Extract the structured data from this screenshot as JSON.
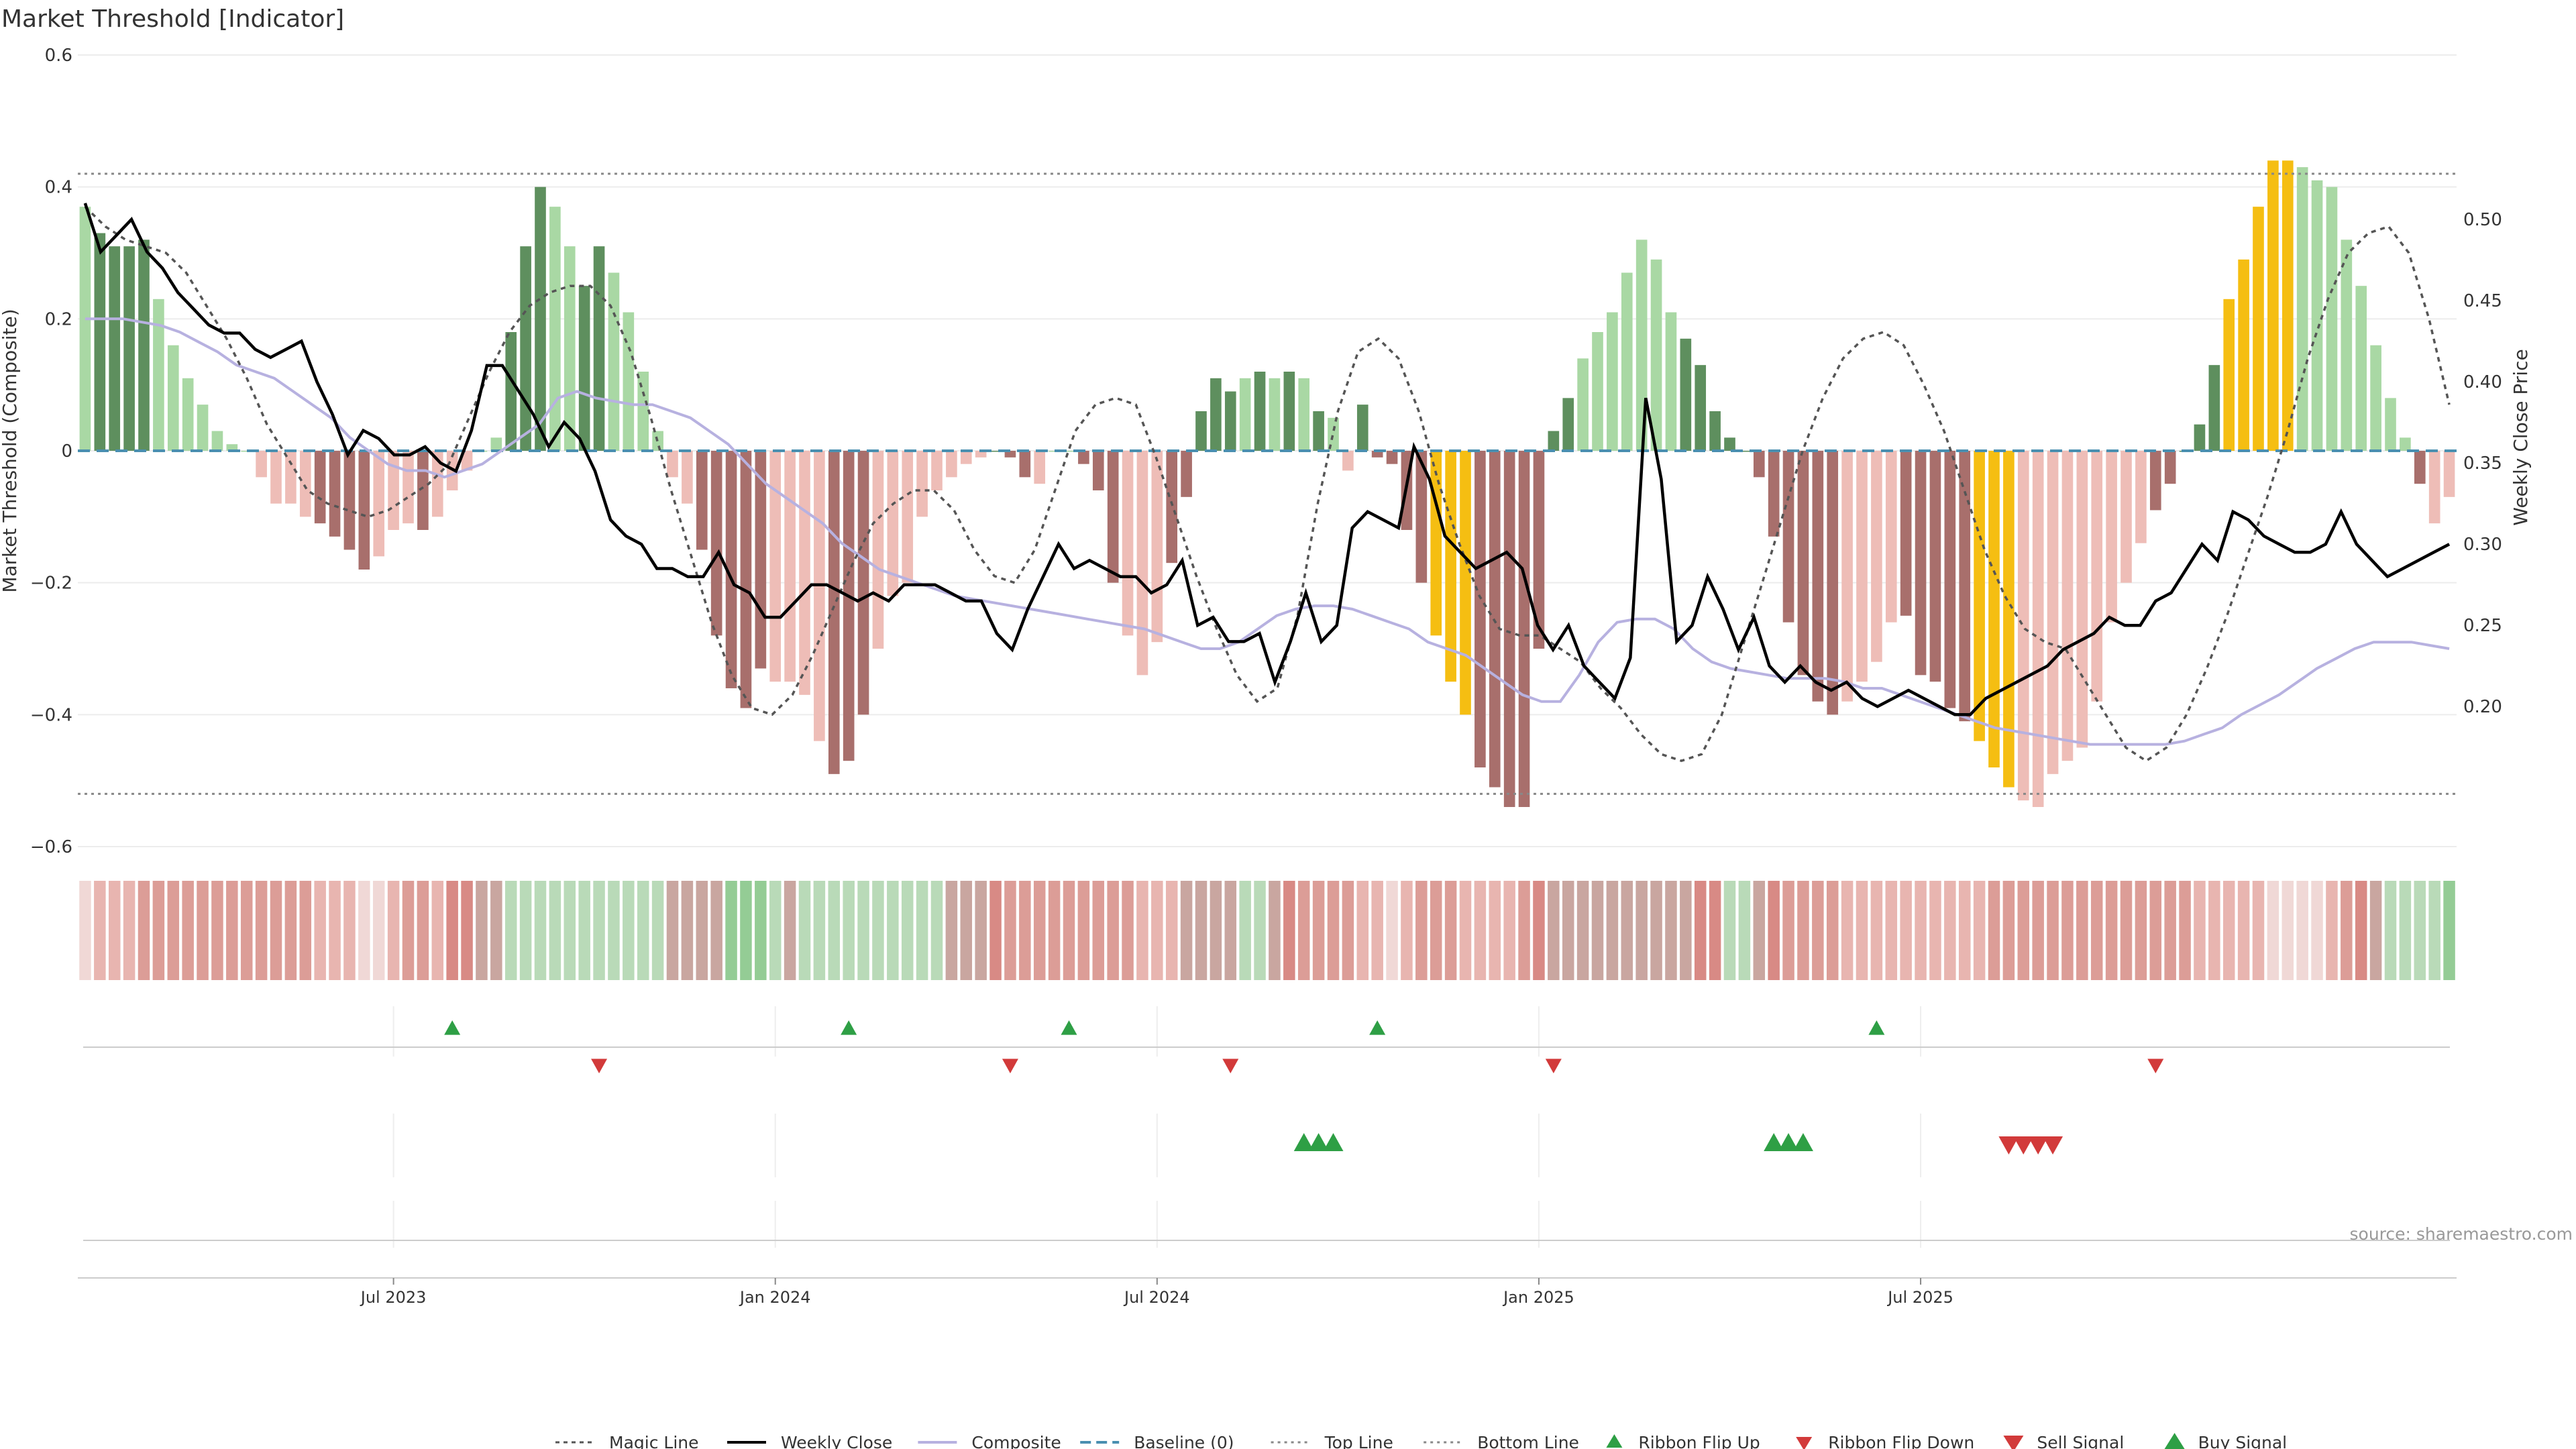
{
  "title": "Market Threshold [Indicator]",
  "source_note": "source: sharemaestro.com",
  "chart_data": {
    "type": "bar",
    "title": "Market Threshold [Indicator]",
    "xlabel": "",
    "ylabel": "Market Threshold (Composite)",
    "y2label": "Weekly Close Price",
    "ylim": [
      -0.6,
      0.6
    ],
    "y2lim": [
      0.195,
      0.52
    ],
    "yticks": [
      0.6,
      0.4,
      0.2,
      0,
      -0.2,
      -0.4,
      -0.6
    ],
    "yticklabels": [
      "0.6",
      "0.4",
      "0.2",
      "0",
      "−0.2",
      "−0.4",
      "−0.6"
    ],
    "y2ticks": [
      0.5,
      0.45,
      0.4,
      0.35,
      0.3,
      0.25,
      0.2
    ],
    "y2ticklabels": [
      "0.50",
      "0.45",
      "0.40",
      "0.35",
      "0.30",
      "0.25",
      "0.20"
    ],
    "xticks": [
      {
        "label": "Jul 2023",
        "index": 21
      },
      {
        "label": "Jan 2024",
        "index": 47
      },
      {
        "label": "Jul 2024",
        "index": 73
      },
      {
        "label": "Jan 2025",
        "index": 99
      },
      {
        "label": "Jul 2025",
        "index": 125
      }
    ],
    "top_line": 0.42,
    "bottom_line": -0.52,
    "grid": true,
    "legend_position": "bottom",
    "colors": {
      "bar_dark_green": "#5e8f5e",
      "bar_light_green": "#a9d8a4",
      "bar_dark_red": "#a86f6c",
      "bar_light_red": "#eebdb7",
      "bar_extreme": "#f5be12",
      "weekly_close": "#000000",
      "composite": "#b7b1e0",
      "magic_line": "#555555",
      "baseline": "#4a8fb0",
      "flip_up": "#2e9f45",
      "flip_down": "#d23a3a"
    },
    "composite_values": [
      0.37,
      0.33,
      0.31,
      0.31,
      0.32,
      0.23,
      0.16,
      0.11,
      0.07,
      0.03,
      0.01,
      0,
      -0.04,
      -0.08,
      -0.08,
      -0.1,
      -0.11,
      -0.13,
      -0.15,
      -0.18,
      -0.16,
      -0.12,
      -0.11,
      -0.12,
      -0.1,
      -0.06,
      -0.03,
      0,
      0.02,
      0.18,
      0.31,
      0.4,
      0.37,
      0.31,
      0.25,
      0.31,
      0.27,
      0.21,
      0.12,
      0.03,
      -0.04,
      -0.08,
      -0.15,
      -0.28,
      -0.36,
      -0.39,
      -0.33,
      -0.35,
      -0.35,
      -0.37,
      -0.44,
      -0.49,
      -0.47,
      -0.4,
      -0.3,
      -0.22,
      -0.2,
      -0.1,
      -0.06,
      -0.04,
      -0.02,
      -0.01,
      0,
      -0.01,
      -0.04,
      -0.05,
      0,
      0,
      -0.02,
      -0.06,
      -0.2,
      -0.28,
      -0.34,
      -0.29,
      -0.17,
      -0.07,
      0.06,
      0.11,
      0.09,
      0.11,
      0.12,
      0.11,
      0.12,
      0.11,
      0.06,
      0.05,
      -0.03,
      0.07,
      -0.01,
      -0.02,
      -0.12,
      -0.2,
      -0.28,
      -0.35,
      -0.4,
      -0.48,
      -0.51,
      -0.54,
      -0.54,
      -0.3,
      0.03,
      0.08,
      0.14,
      0.18,
      0.21,
      0.27,
      0.32,
      0.29,
      0.21,
      0.17,
      0.13,
      0.06,
      0.02,
      0,
      -0.04,
      -0.13,
      -0.26,
      -0.34,
      -0.38,
      -0.4,
      -0.38,
      -0.35,
      -0.32,
      -0.26,
      -0.25,
      -0.34,
      -0.35,
      -0.39,
      -0.41,
      -0.44,
      -0.48,
      -0.51,
      -0.53,
      -0.54,
      -0.49,
      -0.47,
      -0.45,
      -0.38,
      -0.26,
      -0.2,
      -0.14,
      -0.09,
      -0.05,
      0,
      0.04,
      0.13,
      0.23,
      0.29,
      0.37,
      0.44,
      0.44,
      0.43,
      0.41,
      0.4,
      0.32,
      0.25,
      0.16,
      0.08,
      0.02,
      -0.05,
      -0.11,
      -0.07
    ],
    "bar_styles": "LDDDDLLLLLLLLLLLDDDDLLLDLLLLLDDDLLDDLLLLLLDDDDDLLLLDDDLLLLLLLLDDDLLLDDDLLLDDDDDLDLDLDLLDDDDDEEEDDDDDDDLLLLLLLDDDDDDDDDDDLLLLDDDDDEEELLLLLLLLLDDDDDEEEEELLLLLLLLDL",
    "weekly_close": [
      0.51,
      0.48,
      0.49,
      0.5,
      0.48,
      0.47,
      0.455,
      0.445,
      0.435,
      0.43,
      0.43,
      0.42,
      0.415,
      0.42,
      0.425,
      0.4,
      0.38,
      0.355,
      0.37,
      0.365,
      0.355,
      0.355,
      0.36,
      0.35,
      0.345,
      0.37,
      0.41,
      0.41,
      0.395,
      0.38,
      0.36,
      0.375,
      0.365,
      0.345,
      0.315,
      0.305,
      0.3,
      0.285,
      0.285,
      0.28,
      0.28,
      0.295,
      0.275,
      0.27,
      0.255,
      0.255,
      0.265,
      0.275,
      0.275,
      0.27,
      0.265,
      0.27,
      0.265,
      0.275,
      0.275,
      0.275,
      0.27,
      0.265,
      0.265,
      0.245,
      0.235,
      0.26,
      0.28,
      0.3,
      0.285,
      0.29,
      0.285,
      0.28,
      0.28,
      0.27,
      0.275,
      0.29,
      0.25,
      0.255,
      0.24,
      0.24,
      0.245,
      0.215,
      0.24,
      0.27,
      0.24,
      0.25,
      0.31,
      0.32,
      0.315,
      0.31,
      0.36,
      0.34,
      0.305,
      0.295,
      0.285,
      0.29,
      0.295,
      0.285,
      0.25,
      0.235,
      0.25,
      0.225,
      0.215,
      0.205,
      0.23,
      0.39,
      0.34,
      0.24,
      0.25,
      0.28,
      0.26,
      0.235,
      0.255,
      0.225,
      0.215,
      0.225,
      0.215,
      0.21,
      0.215,
      0.205,
      0.2,
      0.205,
      0.21,
      0.205,
      0.2,
      0.195,
      0.195,
      0.205,
      0.21,
      0.215,
      0.22,
      0.225,
      0.235,
      0.24,
      0.245,
      0.255,
      0.25,
      0.25,
      0.265,
      0.27,
      0.285,
      0.3,
      0.29,
      0.32,
      0.315,
      0.305,
      0.3,
      0.295,
      0.295,
      0.3,
      0.32,
      0.3,
      0.29,
      0.28,
      0.285,
      0.29,
      0.295,
      0.3
    ],
    "composite_line": [
      0.2,
      0.2,
      0.2,
      0.195,
      0.19,
      0.18,
      0.165,
      0.15,
      0.13,
      0.12,
      0.11,
      0.09,
      0.07,
      0.05,
      0.02,
      0,
      -0.02,
      -0.03,
      -0.03,
      -0.04,
      -0.03,
      -0.02,
      0,
      0.02,
      0.04,
      0.08,
      0.09,
      0.08,
      0.075,
      0.07,
      0.07,
      0.06,
      0.05,
      0.03,
      0.01,
      -0.02,
      -0.05,
      -0.07,
      -0.09,
      -0.11,
      -0.14,
      -0.16,
      -0.18,
      -0.19,
      -0.2,
      -0.21,
      -0.22,
      -0.225,
      -0.23,
      -0.235,
      -0.24,
      -0.245,
      -0.25,
      -0.255,
      -0.26,
      -0.265,
      -0.27,
      -0.28,
      -0.29,
      -0.3,
      -0.3,
      -0.29,
      -0.27,
      -0.25,
      -0.24,
      -0.235,
      -0.235,
      -0.24,
      -0.25,
      -0.26,
      -0.27,
      -0.29,
      -0.3,
      -0.31,
      -0.33,
      -0.35,
      -0.37,
      -0.38,
      -0.38,
      -0.34,
      -0.29,
      -0.26,
      -0.255,
      -0.255,
      -0.27,
      -0.3,
      -0.32,
      -0.33,
      -0.335,
      -0.34,
      -0.345,
      -0.345,
      -0.345,
      -0.35,
      -0.36,
      -0.36,
      -0.37,
      -0.38,
      -0.39,
      -0.4,
      -0.41,
      -0.42,
      -0.425,
      -0.43,
      -0.435,
      -0.44,
      -0.445,
      -0.445,
      -0.445,
      -0.445,
      -0.445,
      -0.44,
      -0.43,
      -0.42,
      -0.4,
      -0.385,
      -0.37,
      -0.35,
      -0.33,
      -0.315,
      -0.3,
      -0.29,
      -0.29,
      -0.29,
      -0.295,
      -0.3
    ],
    "magic_line": [
      0.37,
      0.34,
      0.32,
      0.31,
      0.3,
      0.27,
      0.22,
      0.17,
      0.11,
      0.04,
      -0.01,
      -0.06,
      -0.08,
      -0.09,
      -0.1,
      -0.09,
      -0.07,
      -0.05,
      -0.02,
      0.05,
      0.12,
      0.18,
      0.22,
      0.24,
      0.25,
      0.25,
      0.22,
      0.15,
      0.05,
      -0.06,
      -0.16,
      -0.26,
      -0.34,
      -0.39,
      -0.4,
      -0.37,
      -0.31,
      -0.24,
      -0.17,
      -0.11,
      -0.08,
      -0.06,
      -0.06,
      -0.09,
      -0.15,
      -0.19,
      -0.2,
      -0.15,
      -0.06,
      0.03,
      0.07,
      0.08,
      0.07,
      -0.01,
      -0.1,
      -0.19,
      -0.27,
      -0.34,
      -0.38,
      -0.36,
      -0.25,
      -0.08,
      0.06,
      0.15,
      0.17,
      0.14,
      0.06,
      -0.05,
      -0.14,
      -0.22,
      -0.27,
      -0.28,
      -0.28,
      -0.3,
      -0.32,
      -0.36,
      -0.39,
      -0.43,
      -0.46,
      -0.47,
      -0.46,
      -0.4,
      -0.3,
      -0.2,
      -0.1,
      0,
      0.08,
      0.14,
      0.17,
      0.18,
      0.16,
      0.1,
      0.03,
      -0.06,
      -0.15,
      -0.22,
      -0.27,
      -0.29,
      -0.3,
      -0.35,
      -0.4,
      -0.45,
      -0.47,
      -0.45,
      -0.4,
      -0.33,
      -0.25,
      -0.16,
      -0.07,
      0.03,
      0.14,
      0.23,
      0.3,
      0.33,
      0.34,
      0.3,
      0.2,
      0.07
    ]
  },
  "ribbon": {
    "colors": [
      "#f0d8d6",
      "#e8b5b0",
      "#dc9d97",
      "#d88a85",
      "#c9a6a0",
      "#b9dab8",
      "#94cc95",
      "#7fc282",
      "#5fb368",
      "#48a555"
    ],
    "levels": "0111222222222222111001221334455555555555444466654555555555544432222222221114444554322221101222111123444444444433554322221111111111222222222222221111100001234555566777777778988888888777765432221111"
  },
  "signals": {
    "ribbon_flip_up": [
      {
        "date": "Jul 2023",
        "index": 25
      },
      {
        "date": "Feb 2024",
        "index": 52
      },
      {
        "date": "May 2024",
        "index": 67
      },
      {
        "date": "Sep 2024",
        "index": 88
      },
      {
        "date": "Apr 2025",
        "index": 122
      }
    ],
    "ribbon_flip_down": [
      {
        "date": "Oct 2023",
        "index": 35
      },
      {
        "date": "Apr 2024",
        "index": 63
      },
      {
        "date": "Jul 2024",
        "index": 78
      },
      {
        "date": "Dec 2024",
        "index": 100
      },
      {
        "date": "Nov 2025",
        "index": 141
      }
    ],
    "buy_signal": [
      {
        "index": 83
      },
      {
        "index": 84
      },
      {
        "index": 85
      },
      {
        "index": 115
      },
      {
        "index": 116
      },
      {
        "index": 117
      }
    ],
    "sell_signal": [
      {
        "index": 131
      },
      {
        "index": 132
      },
      {
        "index": 133
      },
      {
        "index": 134
      }
    ]
  },
  "legend": [
    {
      "key": "magic_line",
      "label": "Magic Line"
    },
    {
      "key": "weekly_close",
      "label": "Weekly Close"
    },
    {
      "key": "composite",
      "label": "Composite"
    },
    {
      "key": "baseline",
      "label": "Baseline (0)"
    },
    {
      "key": "top_line",
      "label": "Top Line"
    },
    {
      "key": "bottom_line",
      "label": "Bottom Line"
    },
    {
      "key": "ribbon_flip_up",
      "label": "Ribbon Flip Up"
    },
    {
      "key": "ribbon_flip_down",
      "label": "Ribbon Flip Down"
    },
    {
      "key": "sell_signal",
      "label": "Sell Signal"
    },
    {
      "key": "buy_signal",
      "label": "Buy Signal"
    }
  ]
}
